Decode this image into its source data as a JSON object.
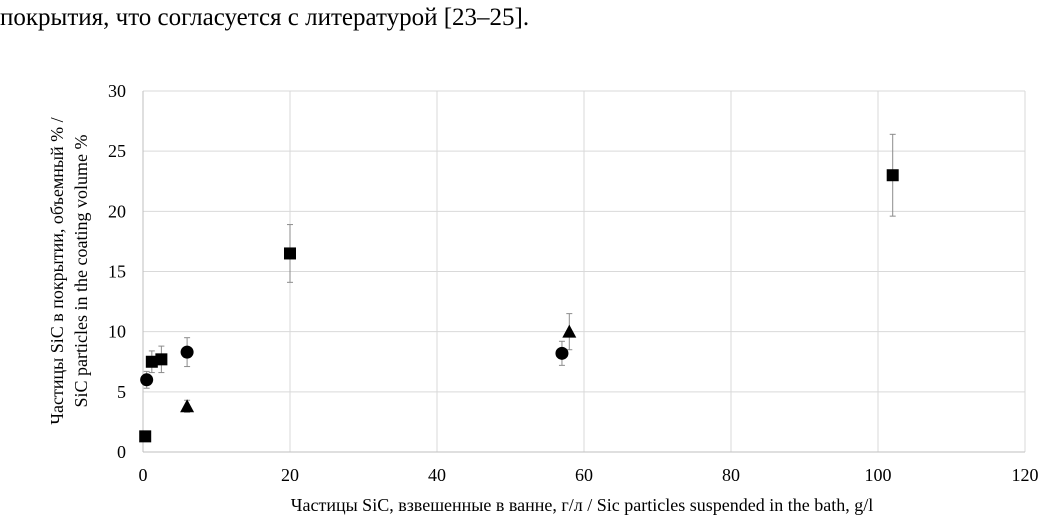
{
  "page_text": {
    "top_line": "покрытия, что согласуется с литературой [23–25]."
  },
  "chart_data": {
    "type": "scatter",
    "title": "",
    "xlabel": "Частицы SiC, взвешенные в ванне, г/л / Sic particles suspended in the bath, g/l",
    "ylabel_lines": [
      "Частицы SiC в покрытии, объемный % /",
      "SiC particles in the coating volume %"
    ],
    "xlim": [
      0,
      120
    ],
    "ylim": [
      0,
      30
    ],
    "x_ticks": [
      0,
      20,
      40,
      60,
      80,
      100,
      120
    ],
    "y_ticks": [
      0,
      5,
      10,
      15,
      20,
      25,
      30
    ],
    "grid": true,
    "legend": "none",
    "series": [
      {
        "marker": "square",
        "points": [
          {
            "x": 0.3,
            "y": 1.3,
            "err": null
          },
          {
            "x": 1.2,
            "y": 7.5,
            "err": 0.9
          },
          {
            "x": 2.5,
            "y": 7.7,
            "err": 1.1
          },
          {
            "x": 20,
            "y": 16.5,
            "err": 2.4
          },
          {
            "x": 102,
            "y": 23.0,
            "err": 3.4
          }
        ]
      },
      {
        "marker": "circle",
        "points": [
          {
            "x": 0.5,
            "y": 6.0,
            "err": 0.7
          },
          {
            "x": 6,
            "y": 8.3,
            "err": 1.2
          },
          {
            "x": 57,
            "y": 8.2,
            "err": 1.0
          }
        ]
      },
      {
        "marker": "triangle",
        "points": [
          {
            "x": 6,
            "y": 3.8,
            "err": 0.5
          },
          {
            "x": 58,
            "y": 10.0,
            "err": 1.5
          }
        ]
      }
    ]
  }
}
